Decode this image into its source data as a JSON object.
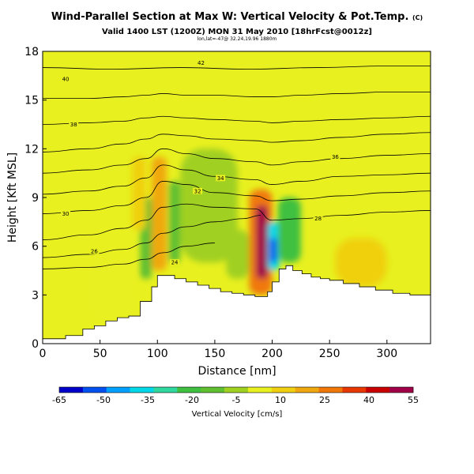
{
  "header": {
    "title": "Wind-Parallel Section at Max W: Vertical Velocity & Pot.Temp.",
    "copyright": "(C)",
    "subtitle": "Valid 1400 LST (1200Z) MON 31 May 2010 [18hrFcst@0012z]",
    "location": "lon,lat=-47@ 32.24,19.96 1880m"
  },
  "chart_data": {
    "type": "heatmap",
    "xlabel": "Distance [nm]",
    "ylabel": "Height [Kft MSL]",
    "xlim": [
      0,
      338
    ],
    "ylim": [
      0,
      18
    ],
    "xticks": [
      0,
      50,
      100,
      150,
      200,
      250,
      300
    ],
    "yticks": [
      0,
      3,
      6,
      9,
      12,
      15,
      18
    ],
    "field": "Vertical Velocity [cm/s]",
    "background_range_cm_s": [
      -5,
      5
    ],
    "terrain_profile": {
      "x": [
        0,
        20,
        35,
        45,
        55,
        65,
        75,
        85,
        95,
        100,
        105,
        115,
        125,
        135,
        145,
        155,
        165,
        175,
        185,
        188,
        192,
        196,
        200,
        206,
        212,
        218,
        226,
        234,
        242,
        250,
        262,
        276,
        290,
        305,
        320,
        338
      ],
      "y": [
        0.3,
        0.5,
        0.9,
        1.1,
        1.4,
        1.6,
        1.7,
        2.6,
        3.5,
        4.2,
        4.2,
        4.0,
        3.8,
        3.6,
        3.4,
        3.2,
        3.1,
        3.0,
        2.9,
        2.9,
        2.9,
        3.2,
        3.8,
        4.6,
        4.8,
        4.5,
        4.3,
        4.1,
        4.0,
        3.9,
        3.7,
        3.5,
        3.3,
        3.1,
        3.0,
        3.0
      ]
    },
    "vertical_velocity_cells": [
      {
        "x": [
          180,
          200
        ],
        "y": [
          3,
          9.5
        ],
        "w_cm_s": 28
      },
      {
        "x": [
          186,
          196
        ],
        "y": [
          4,
          8.5
        ],
        "w_cm_s": 50
      },
      {
        "x": [
          196,
          206
        ],
        "y": [
          4.5,
          7.5
        ],
        "w_cm_s": -35
      },
      {
        "x": [
          198,
          204
        ],
        "y": [
          5,
          6.5
        ],
        "w_cm_s": -55
      },
      {
        "x": [
          95,
          108
        ],
        "y": [
          4.5,
          11.5
        ],
        "w_cm_s": 20
      },
      {
        "x": [
          85,
          95
        ],
        "y": [
          4,
          9
        ],
        "w_cm_s": -12
      },
      {
        "x": [
          110,
          120
        ],
        "y": [
          5,
          10
        ],
        "w_cm_s": -10
      },
      {
        "x": [
          78,
          90
        ],
        "y": [
          7,
          11.5
        ],
        "w_cm_s": 12
      },
      {
        "x": [
          205,
          225
        ],
        "y": [
          5,
          9
        ],
        "w_cm_s": -18
      },
      {
        "x": [
          160,
          180
        ],
        "y": [
          4,
          7
        ],
        "w_cm_s": -8
      },
      {
        "x": [
          255,
          300
        ],
        "y": [
          3.5,
          6.5
        ],
        "w_cm_s": 8
      },
      {
        "x": [
          120,
          170
        ],
        "y": [
          5,
          12
        ],
        "w_cm_s": -6
      },
      {
        "x": [
          40,
          80
        ],
        "y": [
          1.5,
          5.5
        ],
        "w_cm_s": 6
      }
    ],
    "isentropes": [
      {
        "label": "24",
        "points": [
          [
            0,
            4.6
          ],
          [
            40,
            4.7
          ],
          [
            70,
            4.9
          ],
          [
            90,
            5.2
          ],
          [
            105,
            5.6
          ],
          [
            125,
            6.0
          ],
          [
            150,
            6.2
          ]
        ],
        "label_at": [
          115,
          5.0
        ]
      },
      {
        "label": "26",
        "points": [
          [
            0,
            5.3
          ],
          [
            40,
            5.5
          ],
          [
            70,
            5.8
          ],
          [
            90,
            6.2
          ],
          [
            105,
            6.8
          ],
          [
            125,
            7.2
          ],
          [
            150,
            7.5
          ],
          [
            175,
            7.7
          ],
          [
            190,
            7.9
          ]
        ],
        "label_at": [
          45,
          5.7
        ]
      },
      {
        "label": "28",
        "points": [
          [
            0,
            6.4
          ],
          [
            40,
            6.7
          ],
          [
            70,
            7.1
          ],
          [
            90,
            7.6
          ],
          [
            105,
            8.4
          ],
          [
            125,
            8.6
          ],
          [
            150,
            8.4
          ],
          [
            185,
            8.3
          ],
          [
            200,
            7.6
          ],
          [
            225,
            7.7
          ],
          [
            260,
            7.9
          ],
          [
            300,
            8.1
          ],
          [
            338,
            8.2
          ]
        ],
        "label_at": [
          240,
          7.7
        ]
      },
      {
        "label": "30",
        "points": [
          [
            0,
            8.0
          ],
          [
            40,
            8.2
          ],
          [
            70,
            8.5
          ],
          [
            90,
            9.0
          ],
          [
            105,
            10.0
          ],
          [
            125,
            9.8
          ],
          [
            150,
            9.3
          ],
          [
            185,
            9.1
          ],
          [
            200,
            8.8
          ],
          [
            225,
            8.9
          ],
          [
            260,
            9.1
          ],
          [
            300,
            9.3
          ],
          [
            338,
            9.4
          ]
        ],
        "label_at": [
          20,
          8.0
        ]
      },
      {
        "label": "32",
        "points": [
          [
            0,
            9.2
          ],
          [
            40,
            9.4
          ],
          [
            70,
            9.7
          ],
          [
            90,
            10.2
          ],
          [
            105,
            11.0
          ],
          [
            125,
            10.7
          ],
          [
            150,
            10.3
          ],
          [
            185,
            10.1
          ],
          [
            200,
            9.8
          ],
          [
            225,
            10.0
          ],
          [
            260,
            10.3
          ],
          [
            300,
            10.4
          ],
          [
            338,
            10.5
          ]
        ],
        "label_at": [
          135,
          9.4
        ]
      },
      {
        "label": "34",
        "points": [
          [
            0,
            10.5
          ],
          [
            40,
            10.7
          ],
          [
            70,
            11.0
          ],
          [
            90,
            11.4
          ],
          [
            105,
            12.0
          ],
          [
            125,
            11.7
          ],
          [
            150,
            11.4
          ],
          [
            185,
            11.2
          ],
          [
            200,
            11.0
          ],
          [
            225,
            11.2
          ],
          [
            260,
            11.4
          ],
          [
            300,
            11.6
          ],
          [
            338,
            11.7
          ]
        ],
        "label_at": [
          155,
          10.2
        ]
      },
      {
        "label": "36",
        "points": [
          [
            0,
            11.8
          ],
          [
            40,
            12.0
          ],
          [
            70,
            12.3
          ],
          [
            90,
            12.6
          ],
          [
            105,
            12.9
          ],
          [
            125,
            12.8
          ],
          [
            150,
            12.6
          ],
          [
            185,
            12.5
          ],
          [
            200,
            12.4
          ],
          [
            225,
            12.5
          ],
          [
            260,
            12.7
          ],
          [
            300,
            12.9
          ],
          [
            338,
            13.0
          ]
        ],
        "label_at": [
          255,
          11.5
        ]
      },
      {
        "label": "38",
        "points": [
          [
            0,
            13.5
          ],
          [
            40,
            13.6
          ],
          [
            70,
            13.7
          ],
          [
            90,
            13.9
          ],
          [
            105,
            14.0
          ],
          [
            125,
            13.9
          ],
          [
            150,
            13.8
          ],
          [
            185,
            13.7
          ],
          [
            200,
            13.6
          ],
          [
            225,
            13.7
          ],
          [
            260,
            13.8
          ],
          [
            300,
            13.9
          ],
          [
            338,
            14.0
          ]
        ],
        "label_at": [
          27,
          13.5
        ]
      },
      {
        "label": "40",
        "points": [
          [
            0,
            15.1
          ],
          [
            40,
            15.1
          ],
          [
            70,
            15.2
          ],
          [
            90,
            15.3
          ],
          [
            105,
            15.4
          ],
          [
            125,
            15.3
          ],
          [
            150,
            15.3
          ],
          [
            185,
            15.2
          ],
          [
            200,
            15.2
          ],
          [
            225,
            15.3
          ],
          [
            260,
            15.4
          ],
          [
            300,
            15.5
          ],
          [
            338,
            15.5
          ]
        ],
        "label_at": [
          20,
          16.3
        ]
      },
      {
        "label": "42",
        "points": [
          [
            0,
            17.0
          ],
          [
            60,
            16.9
          ],
          [
            120,
            17.0
          ],
          [
            180,
            16.9
          ],
          [
            240,
            17.0
          ],
          [
            300,
            17.1
          ],
          [
            338,
            17.1
          ]
        ],
        "label_at": [
          138,
          17.3
        ]
      }
    ],
    "colorbar": {
      "label": "Vertical Velocity [cm/s]",
      "ticks": [
        "-65",
        "-50",
        "-35",
        "-20",
        "-5",
        "10",
        "25",
        "40",
        "55"
      ],
      "colors": [
        "#0000c8",
        "#0050f0",
        "#00a0ff",
        "#00d8e8",
        "#30d8a0",
        "#40c040",
        "#60c030",
        "#a0d020",
        "#e8f020",
        "#f0d010",
        "#f0a810",
        "#f07808",
        "#e83800",
        "#c80000",
        "#a00048"
      ]
    }
  }
}
